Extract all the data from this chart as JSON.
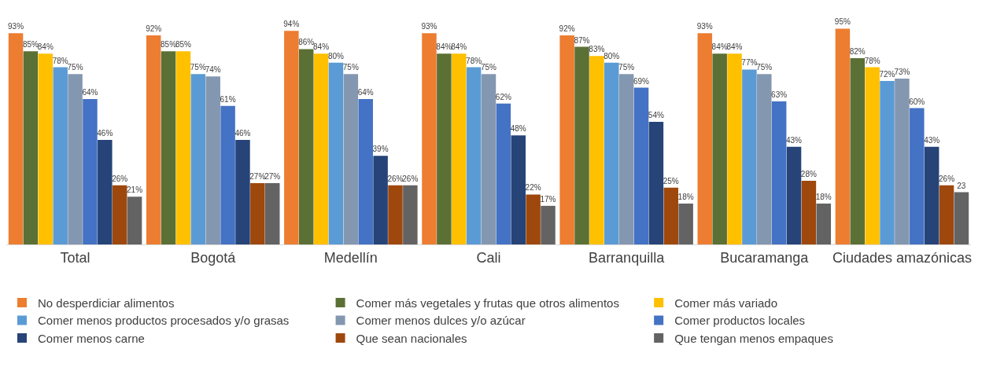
{
  "chart_data": {
    "type": "bar",
    "categories": [
      "Total",
      "Bogotá",
      "Medellín",
      "Cali",
      "Barranquilla",
      "Bucaramanga",
      "Ciudades amazónicas"
    ],
    "series": [
      {
        "name": "No desperdiciar alimentos",
        "color": "#ed7d31",
        "values": [
          93,
          92,
          94,
          93,
          92,
          93,
          95
        ],
        "value_labels": [
          "93%",
          "92%",
          "94%",
          "93%",
          "92%",
          "93%",
          "95%"
        ]
      },
      {
        "name": "Comer más vegetales y frutas que otros alimentos",
        "color": "#5b7035",
        "values": [
          85,
          85,
          86,
          84,
          87,
          84,
          82
        ],
        "value_labels": [
          "85%",
          "85%",
          "86%",
          "84%",
          "87%",
          "84%",
          "82%"
        ]
      },
      {
        "name": "Comer más variado",
        "color": "#ffc000",
        "values": [
          84,
          85,
          84,
          84,
          83,
          84,
          78
        ],
        "value_labels": [
          "84%",
          "85%",
          "84%",
          "84%",
          "83%",
          "84%",
          "78%"
        ]
      },
      {
        "name": "Comer menos productos procesados y/o grasas",
        "color": "#5b9bd5",
        "values": [
          78,
          75,
          80,
          78,
          80,
          77,
          72
        ],
        "value_labels": [
          "78%",
          "75%",
          "80%",
          "78%",
          "80%",
          "77%",
          "72%"
        ]
      },
      {
        "name": "Comer menos dulces y/o azúcar",
        "color": "#8497b0",
        "values": [
          75,
          74,
          75,
          75,
          75,
          75,
          73
        ],
        "value_labels": [
          "75%",
          "74%",
          "75%",
          "75%",
          "75%",
          "75%",
          "73%"
        ]
      },
      {
        "name": "Comer productos locales",
        "color": "#4472c4",
        "values": [
          64,
          61,
          64,
          62,
          69,
          63,
          60
        ],
        "value_labels": [
          "64%",
          "61%",
          "64%",
          "62%",
          "69%",
          "63%",
          "60%"
        ]
      },
      {
        "name": "Comer menos carne",
        "color": "#264478",
        "values": [
          46,
          46,
          39,
          48,
          54,
          43,
          43
        ],
        "value_labels": [
          "46%",
          "46%",
          "39%",
          "48%",
          "54%",
          "43%",
          "43%"
        ]
      },
      {
        "name": "Que sean nacionales",
        "color": "#9e480e",
        "values": [
          26,
          27,
          26,
          22,
          25,
          28,
          26
        ],
        "value_labels": [
          "26%",
          "27%",
          "26%",
          "22%",
          "25%",
          "28%",
          "26%"
        ]
      },
      {
        "name": "Que tengan menos empaques",
        "color": "#636363",
        "values": [
          21,
          27,
          26,
          17,
          18,
          18,
          23
        ],
        "value_labels": [
          "21%",
          "27%",
          "26%",
          "17%",
          "18%",
          "18%",
          "23"
        ]
      }
    ],
    "grid": false,
    "legend": "bottom"
  }
}
